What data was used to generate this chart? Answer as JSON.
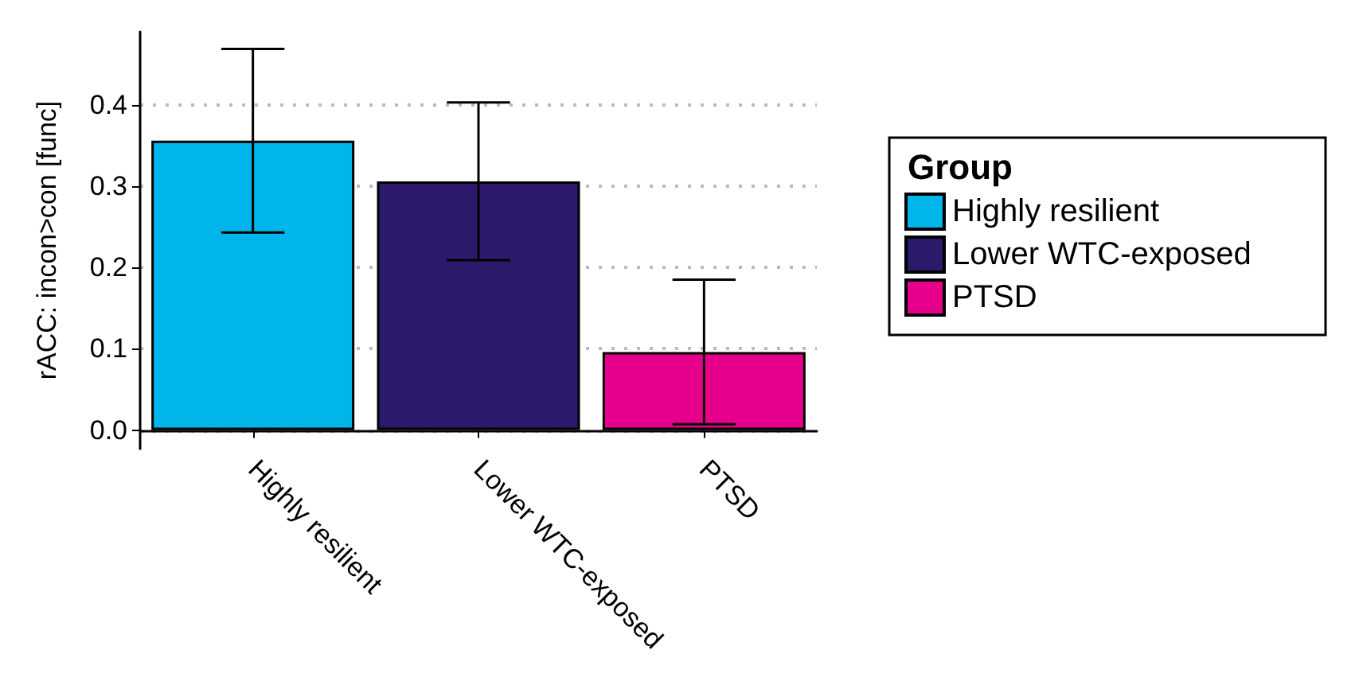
{
  "chart_data": {
    "type": "bar",
    "ylabel": "rACC: incon>con [func]",
    "legend_title": "Group",
    "legend": "right",
    "categories": [
      "Highly resilient",
      "Lower WTC-exposed",
      "PTSD"
    ],
    "series": [
      {
        "name": "Highly resilient",
        "color": "#00b5e9",
        "values": [
          0.356,
          null,
          null
        ],
        "errors": [
          [
            0.243,
            0.469
          ],
          null,
          null
        ]
      },
      {
        "name": "Lower WTC-exposed",
        "color": "#2c196b",
        "values": [
          null,
          0.306,
          null
        ],
        "errors": [
          null,
          [
            0.209,
            0.403
          ],
          null
        ]
      },
      {
        "name": "PTSD",
        "color": "#e6008c",
        "values": [
          null,
          null,
          0.096
        ],
        "errors": [
          null,
          null,
          [
            0.007,
            0.185
          ]
        ]
      }
    ],
    "ylim": [
      -0.023,
      0.49
    ],
    "yticks": [
      {
        "value": 0,
        "label": "0.0"
      },
      0.1,
      0.2,
      0.3,
      0.4
    ],
    "grid": "y"
  }
}
